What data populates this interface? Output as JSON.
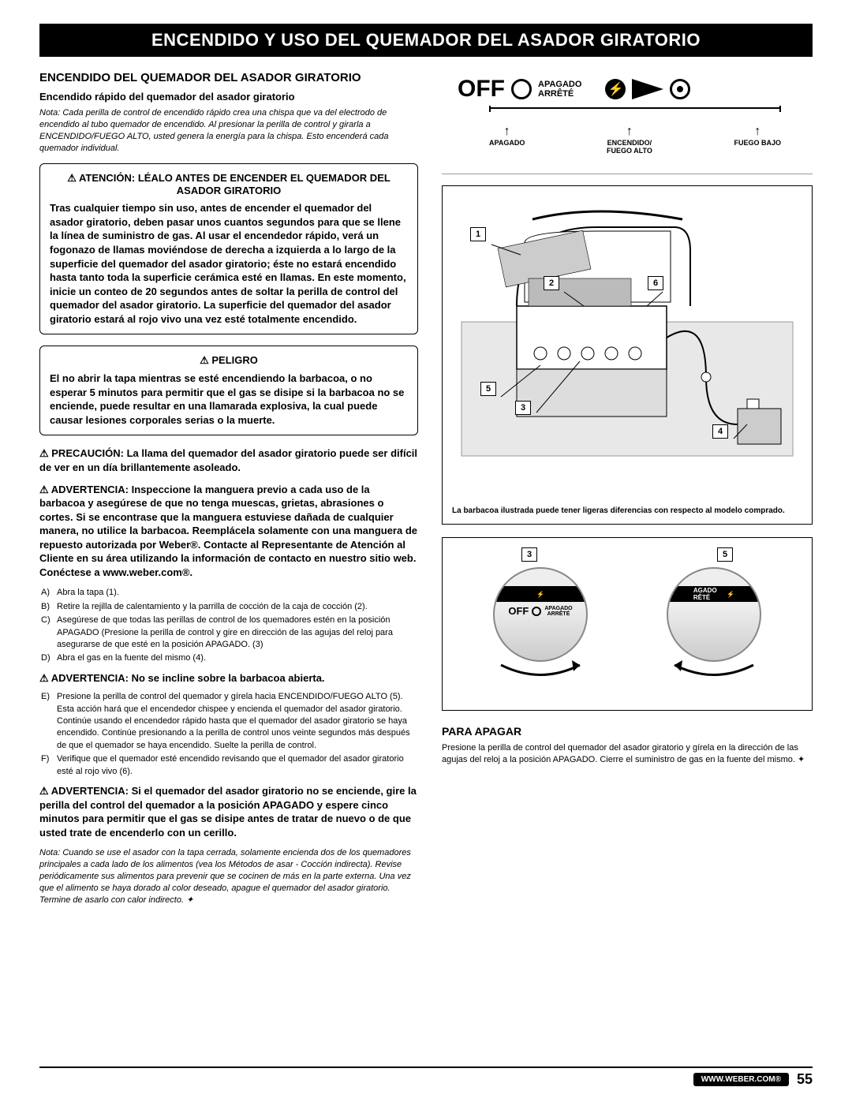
{
  "title_bar": "ENCENDIDO Y USO DEL QUEMADOR DEL ASADOR GIRATORIO",
  "left": {
    "h1": "ENCENDIDO DEL QUEMADOR DEL ASADOR GIRATORIO",
    "h2": "Encendido rápido del quemador del asador giratorio",
    "note1": "Nota: Cada perilla de control de encendido rápido crea una chispa que va del electrodo de encendido al tubo quemador de encendido. Al presionar la perilla de control y girarla a ENCENDIDO/FUEGO ALTO, usted genera la energía para la chispa. Esto encenderá cada quemador individual.",
    "atencion_title": "⚠ ATENCIÓN: LÉALO ANTES DE ENCENDER EL QUEMADOR DEL ASADOR GIRATORIO",
    "atencion_body": "Tras cualquier tiempo sin uso, antes de encender el quemador del asador giratorio, deben pasar unos cuantos segundos para que se llene la línea de suministro de gas. Al usar el encendedor rápido, verá un fogonazo de llamas moviéndose de derecha a izquierda a lo largo de la superficie del quemador del asador giratorio; éste no estará encendido hasta tanto toda la superficie cerámica esté en llamas. En este momento, inicie un conteo de 20 segundos antes de soltar la perilla de control del quemador del asador giratorio. La superficie del quemador del asador giratorio estará al rojo vivo una vez esté totalmente encendido.",
    "peligro_title": "⚠ PELIGRO",
    "peligro_body": "El no abrir la tapa mientras se esté encendiendo la barbacoa, o no esperar 5 minutos para permitir que el gas se disipe si la barbacoa no se enciende, puede resultar en una llamarada explosiva, la cual puede causar lesiones corporales serias o la muerte.",
    "precaucion": "⚠ PRECAUCIÓN: La llama del quemador del asador giratorio puede ser difícil de ver en un día brillantemente asoleado.",
    "advert_hose": "⚠ ADVERTENCIA: Inspeccione la manguera previo a cada uso de la barbacoa y asegúrese de que no tenga muescas, grietas, abrasiones o cortes. Si se encontrase que la manguera estuviese dañada de cualquier manera, no utilice la barbacoa. Reemplácela solamente con una manguera de repuesto autorizada por Weber®. Contacte al Representante de Atención al Cliente en su área utilizando la información de contacto en nuestro sitio web. Conéctese a www.weber.com®.",
    "steps1": [
      {
        "l": "A)",
        "t": "Abra la tapa (1)."
      },
      {
        "l": "B)",
        "t": "Retire la rejilla de calentamiento y la parrilla de cocción de la caja de cocción (2)."
      },
      {
        "l": "C)",
        "t": "Asegúrese de que todas las perillas de control de los quemadores estén en la posición APAGADO (Presione la perilla de control y gire en dirección de las agujas del reloj para asegurarse de que esté en la posición APAGADO. (3)"
      },
      {
        "l": "D)",
        "t": "Abra el gas en la fuente del mismo (4)."
      }
    ],
    "advert_lean": "⚠ ADVERTENCIA: No se incline sobre la barbacoa abierta.",
    "steps2": [
      {
        "l": "E)",
        "t": "Presione la perilla de control del quemador y gírela hacia ENCENDIDO/FUEGO ALTO (5). Esta acción hará que el encendedor chispee y encienda el quemador del asador giratorio. Continúe usando el encendedor rápido hasta que el quemador del asador giratorio se haya encendido. Continúe presionando a la perilla de control unos veinte segundos más después de que el quemador se haya encendido. Suelte la perilla de control."
      },
      {
        "l": "F)",
        "t": "Verifique que el quemador esté encendido revisando que el quemador del asador giratorio esté al rojo vivo (6)."
      }
    ],
    "advert_noignite": "⚠ ADVERTENCIA: Si el quemador del asador giratorio no se enciende, gire la perilla del control del quemador a la posición APAGADO y espere cinco minutos para permitir que el gas se disipe antes de tratar de nuevo o de que usted trate de encenderlo con un cerillo.",
    "note2": "Nota: Cuando se use el asador con la tapa cerrada, solamente encienda dos de los quemadores principales a cada lado de los alimentos (vea los Métodos de asar - Cocción indirecta). Revise periódicamente sus alimentos para prevenir que se cocinen de más en la parte externa. Una vez que el alimento se haya dorado al color deseado, apague el quemador del asador giratorio. Termine de asarlo con calor indirecto. ✦"
  },
  "right": {
    "dial": {
      "off": "OFF",
      "apagado": "APAGADO",
      "arrete": "ARRÊTÉ",
      "label_off": "APAGADO",
      "label_high": "ENCENDIDO/\nFUEGO ALTO",
      "label_low": "FUEGO BAJO"
    },
    "grill_caption": "La barbacoa ilustrada puede tener ligeras diferencias con respecto al modelo comprado.",
    "callouts": {
      "c1": "1",
      "c2": "2",
      "c3": "3",
      "c4": "4",
      "c5": "5",
      "c6": "6"
    },
    "knob_callouts": {
      "k3": "3",
      "k5": "5"
    },
    "knob": {
      "off": "OFF",
      "apag": "APAGADO",
      "arr": "ARRÊTÉ",
      "agado": "AGADO",
      "rete": "RÊTÉ"
    },
    "apagar_h": "PARA APAGAR",
    "apagar_p": "Presione la perilla de control del quemador del asador giratorio y gírela en la dirección de las agujas del reloj a la posición APAGADO. Cierre el suministro de gas en la fuente del mismo. ✦"
  },
  "footer": {
    "url": "WWW.WEBER.COM®",
    "page": "55"
  }
}
